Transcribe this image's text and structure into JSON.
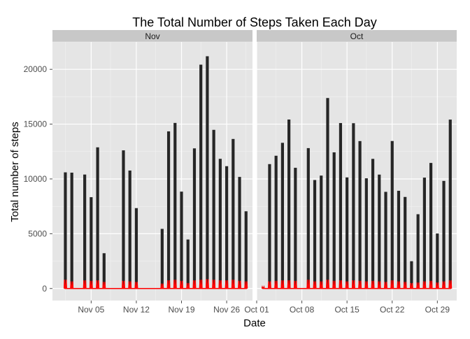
{
  "chart_data": {
    "type": "bar",
    "title": "The Total Number of Steps Taken Each Day",
    "xlabel": "Date",
    "ylabel": "Total number of steps",
    "ylim": [
      -1100,
      22500
    ],
    "yticks": [
      0,
      5000,
      10000,
      15000,
      20000
    ],
    "y_tick_labels": [
      "0",
      "5000",
      "10000",
      "15000",
      "20000"
    ],
    "grid": true,
    "bar_color": "#262626",
    "line_color": "#ff0000",
    "panel_bg": "#e5e5e5",
    "strip_bg": "#c8c8c8",
    "panels": [
      {
        "strip_label": "Nov",
        "xlim": [
          "2012-10-30",
          "2012-11-30"
        ],
        "x_ticks": [
          {
            "date": "2012-11-05",
            "label": "Nov 05"
          },
          {
            "date": "2012-11-12",
            "label": "Nov 12"
          },
          {
            "date": "2012-11-19",
            "label": "Nov 19"
          },
          {
            "date": "2012-11-26",
            "label": "Nov 26"
          }
        ],
        "x_minor": [
          "2012-11-01",
          "2012-11-08",
          "2012-11-15",
          "2012-11-22",
          "2012-11-29"
        ],
        "series": [
          {
            "name": "steps",
            "values": [
              {
                "date": "2012-11-01",
                "steps": 10600
              },
              {
                "date": "2012-11-02",
                "steps": 10571
              },
              {
                "date": "2012-11-04",
                "steps": 10400
              },
              {
                "date": "2012-11-05",
                "steps": 8334
              },
              {
                "date": "2012-11-06",
                "steps": 12883
              },
              {
                "date": "2012-11-07",
                "steps": 3219
              },
              {
                "date": "2012-11-10",
                "steps": 12608
              },
              {
                "date": "2012-11-11",
                "steps": 10765
              },
              {
                "date": "2012-11-12",
                "steps": 7336
              },
              {
                "date": "2012-11-15",
                "steps": 41
              },
              {
                "date": "2012-11-16",
                "steps": 5441
              },
              {
                "date": "2012-11-17",
                "steps": 14339
              },
              {
                "date": "2012-11-18",
                "steps": 15110
              },
              {
                "date": "2012-11-19",
                "steps": 8841
              },
              {
                "date": "2012-11-20",
                "steps": 4472
              },
              {
                "date": "2012-11-21",
                "steps": 12787
              },
              {
                "date": "2012-11-22",
                "steps": 20427
              },
              {
                "date": "2012-11-23",
                "steps": 21194
              },
              {
                "date": "2012-11-24",
                "steps": 14478
              },
              {
                "date": "2012-11-25",
                "steps": 11834
              },
              {
                "date": "2012-11-26",
                "steps": 11162
              },
              {
                "date": "2012-11-27",
                "steps": 13646
              },
              {
                "date": "2012-11-28",
                "steps": 10183
              },
              {
                "date": "2012-11-29",
                "steps": 7047
              }
            ]
          },
          {
            "name": "red_line",
            "values": [
              {
                "date": "2012-11-01",
                "peak": 800
              },
              {
                "date": "2012-11-02",
                "peak": 650
              },
              {
                "date": "2012-11-04",
                "peak": 750
              },
              {
                "date": "2012-11-05",
                "peak": 700
              },
              {
                "date": "2012-11-06",
                "peak": 750
              },
              {
                "date": "2012-11-07",
                "peak": 600
              },
              {
                "date": "2012-11-10",
                "peak": 700
              },
              {
                "date": "2012-11-11",
                "peak": 650
              },
              {
                "date": "2012-11-12",
                "peak": 600
              },
              {
                "date": "2012-11-16",
                "peak": 450
              },
              {
                "date": "2012-11-17",
                "peak": 750
              },
              {
                "date": "2012-11-18",
                "peak": 800
              },
              {
                "date": "2012-11-19",
                "peak": 700
              },
              {
                "date": "2012-11-20",
                "peak": 500
              },
              {
                "date": "2012-11-21",
                "peak": 750
              },
              {
                "date": "2012-11-22",
                "peak": 800
              },
              {
                "date": "2012-11-23",
                "peak": 850
              },
              {
                "date": "2012-11-24",
                "peak": 800
              },
              {
                "date": "2012-11-25",
                "peak": 750
              },
              {
                "date": "2012-11-26",
                "peak": 750
              },
              {
                "date": "2012-11-27",
                "peak": 800
              },
              {
                "date": "2012-11-28",
                "peak": 700
              },
              {
                "date": "2012-11-29",
                "peak": 650
              }
            ]
          }
        ]
      },
      {
        "strip_label": "Oct",
        "xlim": [
          "2012-10-01",
          "2012-11-01"
        ],
        "x_ticks": [
          {
            "date": "2012-10-01",
            "label": "Oct 01"
          },
          {
            "date": "2012-10-08",
            "label": "Oct 08"
          },
          {
            "date": "2012-10-15",
            "label": "Oct 15"
          },
          {
            "date": "2012-10-22",
            "label": "Oct 22"
          },
          {
            "date": "2012-10-29",
            "label": "Oct 29"
          }
        ],
        "x_minor": [
          "2012-10-04",
          "2012-10-11",
          "2012-10-18",
          "2012-10-25"
        ],
        "series": [
          {
            "name": "steps",
            "values": [
              {
                "date": "2012-10-02",
                "steps": 126
              },
              {
                "date": "2012-10-03",
                "steps": 11352
              },
              {
                "date": "2012-10-04",
                "steps": 12116
              },
              {
                "date": "2012-10-05",
                "steps": 13294
              },
              {
                "date": "2012-10-06",
                "steps": 15420
              },
              {
                "date": "2012-10-07",
                "steps": 11015
              },
              {
                "date": "2012-10-09",
                "steps": 12811
              },
              {
                "date": "2012-10-10",
                "steps": 9900
              },
              {
                "date": "2012-10-11",
                "steps": 10304
              },
              {
                "date": "2012-10-12",
                "steps": 17382
              },
              {
                "date": "2012-10-13",
                "steps": 12426
              },
              {
                "date": "2012-10-14",
                "steps": 15098
              },
              {
                "date": "2012-10-15",
                "steps": 10139
              },
              {
                "date": "2012-10-16",
                "steps": 15084
              },
              {
                "date": "2012-10-17",
                "steps": 13452
              },
              {
                "date": "2012-10-18",
                "steps": 10056
              },
              {
                "date": "2012-10-19",
                "steps": 11829
              },
              {
                "date": "2012-10-20",
                "steps": 10395
              },
              {
                "date": "2012-10-21",
                "steps": 8821
              },
              {
                "date": "2012-10-22",
                "steps": 13460
              },
              {
                "date": "2012-10-23",
                "steps": 8918
              },
              {
                "date": "2012-10-24",
                "steps": 8355
              },
              {
                "date": "2012-10-25",
                "steps": 2492
              },
              {
                "date": "2012-10-26",
                "steps": 6778
              },
              {
                "date": "2012-10-27",
                "steps": 10119
              },
              {
                "date": "2012-10-28",
                "steps": 11458
              },
              {
                "date": "2012-10-29",
                "steps": 5018
              },
              {
                "date": "2012-10-30",
                "steps": 9819
              },
              {
                "date": "2012-10-31",
                "steps": 15414
              }
            ]
          },
          {
            "name": "red_line",
            "values": [
              {
                "date": "2012-10-02",
                "peak": 150
              },
              {
                "date": "2012-10-03",
                "peak": 650
              },
              {
                "date": "2012-10-04",
                "peak": 700
              },
              {
                "date": "2012-10-05",
                "peak": 750
              },
              {
                "date": "2012-10-06",
                "peak": 750
              },
              {
                "date": "2012-10-07",
                "peak": 700
              },
              {
                "date": "2012-10-09",
                "peak": 800
              },
              {
                "date": "2012-10-10",
                "peak": 650
              },
              {
                "date": "2012-10-11",
                "peak": 650
              },
              {
                "date": "2012-10-12",
                "peak": 800
              },
              {
                "date": "2012-10-13",
                "peak": 700
              },
              {
                "date": "2012-10-14",
                "peak": 750
              },
              {
                "date": "2012-10-15",
                "peak": 650
              },
              {
                "date": "2012-10-16",
                "peak": 750
              },
              {
                "date": "2012-10-17",
                "peak": 700
              },
              {
                "date": "2012-10-18",
                "peak": 650
              },
              {
                "date": "2012-10-19",
                "peak": 700
              },
              {
                "date": "2012-10-20",
                "peak": 650
              },
              {
                "date": "2012-10-21",
                "peak": 600
              },
              {
                "date": "2012-10-22",
                "peak": 750
              },
              {
                "date": "2012-10-23",
                "peak": 650
              },
              {
                "date": "2012-10-24",
                "peak": 600
              },
              {
                "date": "2012-10-25",
                "peak": 500
              },
              {
                "date": "2012-10-26",
                "peak": 550
              },
              {
                "date": "2012-10-27",
                "peak": 650
              },
              {
                "date": "2012-10-28",
                "peak": 700
              },
              {
                "date": "2012-10-29",
                "peak": 550
              },
              {
                "date": "2012-10-30",
                "peak": 650
              },
              {
                "date": "2012-10-31",
                "peak": 750
              }
            ]
          }
        ]
      }
    ]
  }
}
